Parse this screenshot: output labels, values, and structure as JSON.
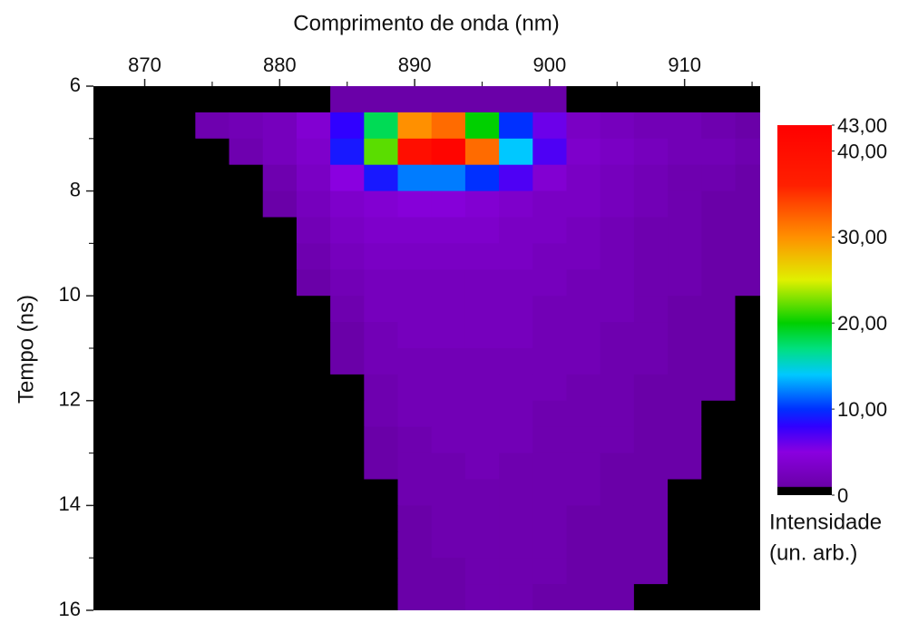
{
  "chart_data": {
    "type": "heatmap",
    "title": "Comprimento de onda (nm)",
    "y_label": "Tempo (ns)",
    "colorbar_label": [
      "Intensidade",
      "(un. arb.)"
    ],
    "xlim": [
      866.2,
      915.6
    ],
    "xticks": [
      870,
      880,
      890,
      900,
      910
    ],
    "xminor": [
      875,
      885,
      895,
      905,
      915
    ],
    "ylim": [
      6,
      16
    ],
    "yticks": [
      6,
      8,
      10,
      12,
      14,
      16
    ],
    "yminor": [
      7,
      9,
      11,
      13,
      15
    ],
    "y_inverted": true,
    "clim": [
      0,
      43
    ],
    "cticks": [
      {
        "value": 43,
        "label": "43,00"
      },
      {
        "value": 40,
        "label": "40,00"
      },
      {
        "value": 30,
        "label": "30,00"
      },
      {
        "value": 20,
        "label": "20,00"
      },
      {
        "value": 10,
        "label": "10,00"
      },
      0
    ],
    "colorscale": [
      [
        0,
        "#000000"
      ],
      [
        0.9,
        "#000000"
      ],
      [
        1,
        "#6a00a8"
      ],
      [
        5,
        "#8a00e0"
      ],
      [
        8,
        "#3000ff"
      ],
      [
        10,
        "#0030ff"
      ],
      [
        14,
        "#00c8ff"
      ],
      [
        17,
        "#00e080"
      ],
      [
        20,
        "#00d000"
      ],
      [
        25,
        "#e0f000"
      ],
      [
        30,
        "#ff9000"
      ],
      [
        36,
        "#ff2000"
      ],
      [
        43,
        "#ff0000"
      ]
    ],
    "x": [
      867.5,
      870,
      872.5,
      875,
      877.5,
      880,
      882.5,
      885,
      887.5,
      890,
      892.5,
      895,
      897.5,
      900,
      902.5,
      905,
      907.5,
      910,
      912.5,
      915
    ],
    "y": [
      6.25,
      6.75,
      7.25,
      7.75,
      8.25,
      8.75,
      9.25,
      9.75,
      10.25,
      10.75,
      11.25,
      11.75,
      12.25,
      12.75,
      13.25,
      13.75,
      14.25,
      14.75,
      15.25,
      15.75
    ],
    "z": [
      [
        0,
        0,
        0,
        0,
        0,
        0,
        0.5,
        1,
        1,
        1,
        1,
        1,
        1,
        1,
        0.5,
        0.5,
        0,
        0,
        0,
        0
      ],
      [
        0,
        0,
        0.5,
        1.5,
        2,
        2.5,
        4,
        8,
        18,
        30,
        32,
        20,
        10,
        6,
        3,
        2.5,
        2,
        2,
        1.5,
        1
      ],
      [
        0,
        0,
        0,
        0.5,
        1.5,
        2.5,
        3.5,
        9,
        22,
        40,
        42,
        32,
        14,
        7,
        3.5,
        3,
        2.5,
        2,
        2,
        1.5
      ],
      [
        0,
        0,
        0,
        0,
        0.5,
        1.5,
        3,
        5,
        9,
        12,
        12,
        10,
        7,
        4,
        3,
        2.5,
        2,
        1.5,
        1.5,
        1
      ],
      [
        0,
        0,
        0,
        0,
        0,
        1,
        2.5,
        3.5,
        4,
        4.5,
        4.5,
        4,
        3.5,
        3,
        3,
        2.5,
        2,
        1.5,
        1,
        1
      ],
      [
        0,
        0,
        0,
        0,
        0,
        0.5,
        2,
        3,
        3.5,
        3.5,
        3.5,
        3.5,
        3,
        3,
        2.5,
        2,
        1.5,
        1.5,
        1,
        1
      ],
      [
        0,
        0,
        0,
        0,
        0,
        0,
        1.5,
        2.5,
        3,
        3,
        3,
        3,
        3,
        2.5,
        2.5,
        2,
        1.5,
        1.5,
        1,
        1
      ],
      [
        0,
        0,
        0,
        0,
        0,
        0,
        1,
        2,
        2.5,
        2.5,
        2.5,
        2.5,
        2.5,
        2.5,
        2,
        2,
        1.5,
        1.5,
        1,
        1
      ],
      [
        0,
        0,
        0,
        0,
        0,
        0,
        0.5,
        1.5,
        2.5,
        2.5,
        2.5,
        2.5,
        2.5,
        2,
        2,
        2,
        1.5,
        1,
        1,
        0.5
      ],
      [
        0,
        0,
        0,
        0,
        0,
        0,
        0,
        1,
        2,
        2.5,
        2.5,
        2.5,
        2.5,
        2,
        2,
        1.5,
        1.5,
        1,
        1,
        0.5
      ],
      [
        0,
        0,
        0,
        0,
        0,
        0,
        0,
        1,
        2,
        2,
        2,
        2,
        2,
        2,
        2,
        1.5,
        1.5,
        1,
        1,
        0.5
      ],
      [
        0,
        0,
        0,
        0,
        0,
        0,
        0,
        0.5,
        1.5,
        2,
        2,
        2,
        2,
        2,
        1.5,
        1.5,
        1,
        1,
        1,
        0.5
      ],
      [
        0,
        0,
        0,
        0,
        0,
        0,
        0,
        0.5,
        1.5,
        2,
        2,
        2,
        2,
        1.5,
        1.5,
        1.5,
        1,
        1,
        0.5,
        0.5
      ],
      [
        0,
        0,
        0,
        0,
        0,
        0,
        0,
        0,
        1,
        1.5,
        2,
        2,
        2,
        1.5,
        1.5,
        1.5,
        1,
        1,
        0.5,
        0.5
      ],
      [
        0,
        0,
        0,
        0,
        0,
        0,
        0,
        0,
        1,
        1.5,
        1.5,
        2,
        1.5,
        1.5,
        1.5,
        1,
        1,
        1,
        0.5,
        0.5
      ],
      [
        0,
        0,
        0,
        0,
        0,
        0,
        0,
        0,
        0.5,
        1.5,
        1.5,
        1.5,
        1.5,
        1.5,
        1.5,
        1,
        1,
        0.5,
        0.5,
        0.5
      ],
      [
        0,
        0,
        0,
        0,
        0,
        0,
        0,
        0,
        0.5,
        1,
        1.5,
        1.5,
        1.5,
        1.5,
        1,
        1,
        1,
        0.5,
        0.5,
        0.5
      ],
      [
        0,
        0,
        0,
        0,
        0,
        0,
        0,
        0,
        0.5,
        1,
        1.5,
        1.5,
        1.5,
        1.5,
        1,
        1,
        1,
        0.5,
        0.5,
        0.5
      ],
      [
        0,
        0,
        0,
        0,
        0,
        0,
        0,
        0,
        0,
        1,
        1,
        1.5,
        1.5,
        1.5,
        1,
        1,
        1,
        0.5,
        0.5,
        0.5
      ],
      [
        0,
        0,
        0,
        0,
        0,
        0,
        0,
        0,
        0,
        1,
        1,
        1.5,
        1.5,
        1,
        1,
        1,
        0.5,
        0.5,
        0.5,
        0.5
      ]
    ]
  }
}
